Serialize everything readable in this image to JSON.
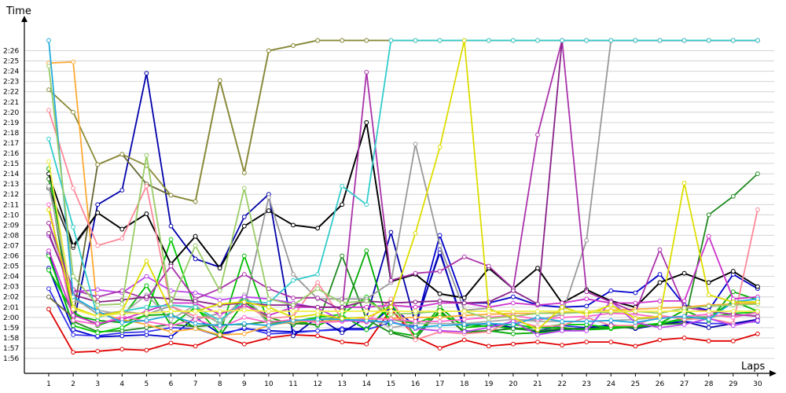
{
  "chart_data": {
    "type": "line",
    "title": "",
    "xlabel": "Laps",
    "ylabel": "Time",
    "x": [
      1,
      2,
      3,
      4,
      5,
      6,
      7,
      8,
      9,
      10,
      11,
      12,
      13,
      14,
      15,
      16,
      17,
      18,
      19,
      20,
      21,
      22,
      23,
      24,
      25,
      26,
      27,
      28,
      29,
      30
    ],
    "x_tick_labels": [
      "1",
      "2",
      "3",
      "4",
      "5",
      "6",
      "7",
      "8",
      "9",
      "10",
      "11",
      "12",
      "13",
      "14",
      "15",
      "16",
      "17",
      "18",
      "19",
      "20",
      "21",
      "22",
      "23",
      "24",
      "25",
      "26",
      "27",
      "28",
      "29",
      "30"
    ],
    "y_unit": "seconds",
    "y_tick_values": [
      116,
      117,
      118,
      119,
      120,
      121,
      122,
      123,
      124,
      125,
      126,
      127,
      128,
      129,
      130,
      131,
      132,
      133,
      134,
      135,
      136,
      137,
      138,
      139,
      140,
      141,
      142,
      143,
      144,
      145,
      146
    ],
    "y_tick_labels": [
      "1:56",
      "1:57",
      "1:58",
      "1:59",
      "2:00",
      "2:01",
      "2:02",
      "2:03",
      "2:04",
      "2:05",
      "2:06",
      "2:07",
      "2:08",
      "2:09",
      "2:10",
      "2:11",
      "2:12",
      "2:13",
      "2:14",
      "2:15",
      "2:16",
      "2:17",
      "2:18",
      "2:19",
      "2:20",
      "2:21",
      "2:22",
      "2:23",
      "2:24",
      "2:25",
      "2:26"
    ],
    "ylim": [
      115,
      147.5
    ],
    "grid": "horizontal",
    "series": [
      {
        "color": "#e00000",
        "values": [
          120.8,
          116.6,
          116.7,
          116.9,
          116.8,
          117.5,
          117.2,
          118.2,
          117.4,
          118.0,
          118.3,
          118.2,
          117.6,
          117.4,
          120.8,
          118.1,
          117.0,
          117.8,
          117.2,
          117.4,
          117.6,
          117.3,
          117.6,
          117.6,
          117.2,
          117.8,
          118.0,
          117.7,
          117.7,
          118.4
        ]
      },
      {
        "color": "#0000cc",
        "values": [
          124.8,
          118.8,
          118.1,
          118.2,
          118.3,
          118.1,
          120.0,
          118.4,
          118.9,
          118.7,
          118.6,
          118.7,
          118.9,
          118.9,
          121.0,
          119.2,
          128.0,
          121.4,
          121.4,
          122.0,
          121.2,
          121.0,
          121.1,
          122.6,
          122.4,
          124.2,
          121.2,
          120.7,
          124.2,
          122.8
        ]
      },
      {
        "color": "#3333ee",
        "values": [
          122.8,
          118.3,
          118.2,
          118.5,
          118.6,
          119.0,
          118.9,
          118.2,
          119.0,
          118.4,
          118.5,
          118.7,
          118.8,
          118.8,
          119.5,
          119.1,
          126.6,
          118.7,
          118.6,
          119.0,
          118.7,
          119.2,
          119.0,
          119.3,
          118.9,
          119.4,
          119.6,
          119.4,
          119.4,
          119.6
        ]
      },
      {
        "color": "#0000aa",
        "values": [
          126.2,
          119.2,
          131.0,
          132.4,
          143.8,
          128.9,
          125.7,
          124.9,
          129.8,
          132.0,
          118.2,
          120.0,
          118.5,
          120.0,
          128.3,
          119.4,
          126.3,
          119.2,
          119.4,
          119.0,
          118.6,
          118.8,
          119.0,
          119.2,
          118.9,
          119.3,
          119.6,
          119.0,
          119.4,
          119.8
        ]
      },
      {
        "color": "#00aa00",
        "values": [
          134.5,
          120.2,
          119.7,
          119.5,
          120.2,
          120.3,
          119.0,
          118.2,
          121.5,
          120.0,
          119.3,
          119.8,
          120.0,
          126.5,
          118.6,
          118.2,
          120.6,
          118.6,
          118.7,
          118.4,
          118.5,
          118.7,
          118.8,
          119.1,
          119.2,
          119.4,
          120.7,
          119.7,
          122.5,
          121.7
        ]
      },
      {
        "color": "#00bb00",
        "values": [
          124.6,
          120.5,
          119.2,
          120.0,
          123.1,
          119.2,
          121.0,
          118.4,
          126.0,
          119.4,
          119.7,
          119.2,
          120.2,
          118.8,
          121.3,
          118.2,
          121.0,
          119.0,
          119.2,
          118.9,
          119.0,
          119.0,
          118.8,
          118.9,
          119.1,
          119.4,
          119.9,
          120.0,
          121.6,
          120.6
        ]
      },
      {
        "color": "#1f8a1f",
        "values": [
          133.5,
          119.6,
          118.6,
          118.7,
          119.0,
          119.3,
          119.1,
          119.3,
          119.3,
          119.6,
          119.4,
          119.3,
          126.0,
          119.8,
          118.5,
          117.9,
          120.7,
          118.5,
          118.7,
          118.9,
          118.7,
          118.9,
          118.9,
          119.0,
          119.0,
          119.3,
          119.4,
          130.0,
          131.8,
          134.0
        ]
      },
      {
        "color": "#00cc00",
        "values": [
          126.0,
          119.2,
          118.5,
          119.0,
          120.3,
          127.6,
          120.8,
          119.4,
          122.0,
          119.6,
          119.6,
          120.0,
          120.3,
          122.0,
          119.8,
          119.4,
          120.3,
          119.3,
          119.1,
          119.3,
          119.0,
          119.3,
          119.3,
          119.0,
          119.2,
          119.4,
          119.8,
          120.0,
          120.4,
          120.5
        ]
      },
      {
        "color": "#666633",
        "values": [
          122.0,
          120.0,
          134.9,
          135.9,
          133.0,
          131.9,
          131.3,
          143.1,
          134.1,
          146.0,
          146.5,
          147.0,
          147.0,
          147.0,
          147.0,
          147.0,
          147.0,
          147.0,
          147.0,
          147.0,
          147.0,
          147.0,
          147.0,
          147.0,
          147.0,
          147.0,
          147.0,
          147.0,
          147.0,
          147.0
        ]
      },
      {
        "color": "#8b8b3a",
        "values": [
          142.2,
          140.0,
          134.9,
          135.9,
          134.8,
          131.9,
          131.3,
          143.1,
          134.1,
          146.0,
          146.5,
          147.0,
          147.0,
          147.0,
          147.0,
          147.0,
          147.0,
          147.0,
          147.0,
          147.0,
          147.0,
          147.0,
          147.0,
          147.0,
          147.0,
          147.0,
          147.0,
          147.0,
          147.0,
          147.0
        ]
      },
      {
        "color": "#333333",
        "values": [
          132.6,
          126.8,
          130.2,
          128.6,
          130.1,
          125.2,
          127.9,
          124.8,
          128.9,
          130.4,
          129.0,
          128.7,
          131.0,
          139.0,
          123.5,
          124.2,
          122.3,
          121.9,
          124.8,
          122.8,
          124.8,
          121.4,
          122.7,
          121.6,
          121.0,
          123.4,
          124.3,
          123.4,
          124.5,
          123.0
        ]
      },
      {
        "color": "#000000",
        "values": [
          134.0,
          127.0,
          130.2,
          128.6,
          130.1,
          125.2,
          127.9,
          124.8,
          128.9,
          130.4,
          129.0,
          128.7,
          131.0,
          139.0,
          123.5,
          124.2,
          122.3,
          121.9,
          124.8,
          122.8,
          124.8,
          121.4,
          122.7,
          121.6,
          121.0,
          123.4,
          124.3,
          123.4,
          124.5,
          123.0
        ]
      },
      {
        "color": "#999999",
        "values": [
          129.2,
          122.0,
          120.3,
          120.6,
          120.3,
          121.1,
          119.8,
          120.4,
          121.0,
          131.7,
          124.2,
          121.8,
          121.8,
          121.8,
          123.4,
          136.9,
          127.0,
          120.7,
          120.9,
          119.8,
          119.7,
          120.3,
          127.5,
          147.0,
          147.0,
          147.0,
          147.0,
          147.0,
          147.0,
          147.0
        ]
      },
      {
        "color": "#aaaaaa",
        "values": [
          132.8,
          121.7,
          120.7,
          120.3,
          122.2,
          119.8,
          121.2,
          119.3,
          122.2,
          119.3,
          119.5,
          119.8,
          119.9,
          120.0,
          119.0,
          119.4,
          119.4,
          119.4,
          119.6,
          119.8,
          119.6,
          119.6,
          119.6,
          119.7,
          119.8,
          120.0,
          120.0,
          120.1,
          120.2,
          120.2
        ]
      },
      {
        "color": "#ffaa33",
        "values": [
          144.8,
          144.9,
          120.4,
          119.8,
          119.3,
          118.6,
          118.9,
          118.3,
          118.4,
          119.2,
          119.6,
          119.6,
          119.7,
          119.8,
          119.9,
          120.0,
          120.0,
          120.2,
          120.3,
          120.4,
          120.4,
          120.5,
          120.6,
          120.7,
          120.8,
          120.9,
          121.0,
          121.2,
          121.3,
          121.4
        ]
      },
      {
        "color": "#ff8899",
        "values": [
          140.2,
          132.6,
          127.0,
          127.7,
          132.8,
          121.1,
          120.1,
          119.8,
          121.2,
          119.9,
          120.1,
          123.4,
          119.8,
          119.5,
          121.8,
          117.8,
          118.6,
          118.4,
          118.6,
          119.7,
          119.1,
          119.2,
          120.0,
          119.2,
          119.2,
          120.2,
          119.8,
          119.9,
          119.4,
          130.5
        ]
      },
      {
        "color": "#ff66cc",
        "values": [
          131.0,
          119.7,
          119.3,
          120.1,
          119.6,
          119.2,
          119.8,
          119.0,
          120.0,
          119.5,
          119.8,
          119.5,
          119.6,
          119.9,
          119.8,
          119.6,
          119.6,
          119.8,
          120.0,
          120.2,
          119.8,
          120.0,
          120.1,
          120.4,
          120.3,
          120.0,
          120.1,
          120.3,
          120.0,
          120.5
        ]
      },
      {
        "color": "#cc33cc",
        "values": [
          126.5,
          120.2,
          119.4,
          119.8,
          120.6,
          121.4,
          121.4,
          120.3,
          121.2,
          120.2,
          121.0,
          121.0,
          121.0,
          121.0,
          121.2,
          121.0,
          121.4,
          121.4,
          121.0,
          121.4,
          121.2,
          121.4,
          121.8,
          121.4,
          121.4,
          121.6,
          121.6,
          127.9,
          121.8,
          122.0
        ]
      },
      {
        "color": "#bb44ee",
        "values": [
          128.0,
          122.5,
          122.7,
          122.4,
          124.0,
          122.6,
          122.4,
          121.7,
          122.0,
          121.8,
          121.4,
          120.9,
          119.7,
          119.6,
          119.6,
          118.9,
          118.7,
          118.6,
          119.0,
          119.6,
          118.3,
          118.7,
          118.7,
          121.6,
          119.5,
          119.0,
          119.3,
          119.9,
          119.2,
          119.7
        ]
      },
      {
        "color": "#aa33aa",
        "values": [
          129.2,
          122.7,
          122.0,
          122.6,
          121.8,
          125.0,
          121.8,
          122.8,
          124.2,
          122.8,
          121.9,
          121.9,
          120.7,
          143.9,
          123.6,
          124.3,
          124.5,
          125.9,
          125.0,
          122.8,
          137.8,
          147.0,
          122.5,
          121.5,
          120.5,
          126.6,
          121.0,
          120.6,
          120.3,
          120.1
        ]
      },
      {
        "color": "#882288",
        "values": [
          128.2,
          122.2,
          121.5,
          121.7,
          122.0,
          121.8,
          121.6,
          121.2,
          121.4,
          121.2,
          121.2,
          121.0,
          121.0,
          121.6,
          121.4,
          121.5,
          121.6,
          121.4,
          121.5,
          122.6,
          121.3,
          147.0,
          147.0,
          147.0,
          147.0,
          147.0,
          147.0,
          147.0,
          147.0,
          147.0
        ]
      },
      {
        "color": "#33cccc",
        "values": [
          137.4,
          128.8,
          120.0,
          120.6,
          121.0,
          121.2,
          121.0,
          119.7,
          121.6,
          121.4,
          123.6,
          124.2,
          132.8,
          131.0,
          147.0,
          147.0,
          147.0,
          147.0,
          147.0,
          147.0,
          147.0,
          147.0,
          147.0,
          147.0,
          147.0,
          147.0,
          147.0,
          147.0,
          147.0,
          147.0
        ]
      },
      {
        "color": "#22aadd",
        "values": [
          147.0,
          122.0,
          120.6,
          119.5,
          119.7,
          120.2,
          119.4,
          119.2,
          119.4,
          119.2,
          119.7,
          119.8,
          119.8,
          119.7,
          119.5,
          119.0,
          119.2,
          119.3,
          119.4,
          119.3,
          120.0,
          119.6,
          119.6,
          119.7,
          119.5,
          119.9,
          120.1,
          119.8,
          121.5,
          121.8
        ]
      },
      {
        "color": "#99cc66",
        "values": [
          144.5,
          124.0,
          121.2,
          121.3,
          135.8,
          121.3,
          127.0,
          122.6,
          132.6,
          121.8,
          121.2,
          122.8,
          121.4,
          121.6,
          120.3,
          120.4,
          120.6,
          120.6,
          119.9,
          120.1,
          120.4,
          120.4,
          120.5,
          120.5,
          120.6,
          120.4,
          120.9,
          121.1,
          121.2,
          121.3
        ]
      },
      {
        "color": "#dddd00",
        "values": [
          130.5,
          121.0,
          120.1,
          120.6,
          125.5,
          120.6,
          120.6,
          121.3,
          121.5,
          121.0,
          120.0,
          120.3,
          119.9,
          120.0,
          121.0,
          128.2,
          136.6,
          147.0,
          120.8,
          120.0,
          118.8,
          121.0,
          120.3,
          121.2,
          119.9,
          120.1,
          133.1,
          122.2,
          121.5,
          121.5
        ]
      },
      {
        "color": "#eeee44",
        "values": [
          135.2,
          120.8,
          120.1,
          120.4,
          120.4,
          120.6,
          120.6,
          120.6,
          120.7,
          120.6,
          120.6,
          120.6,
          120.6,
          120.6,
          120.6,
          120.6,
          120.6,
          120.6,
          120.6,
          120.6,
          120.6,
          120.6,
          120.6,
          120.6,
          120.6,
          120.6,
          120.6,
          120.6,
          120.6,
          120.6
        ]
      }
    ]
  }
}
